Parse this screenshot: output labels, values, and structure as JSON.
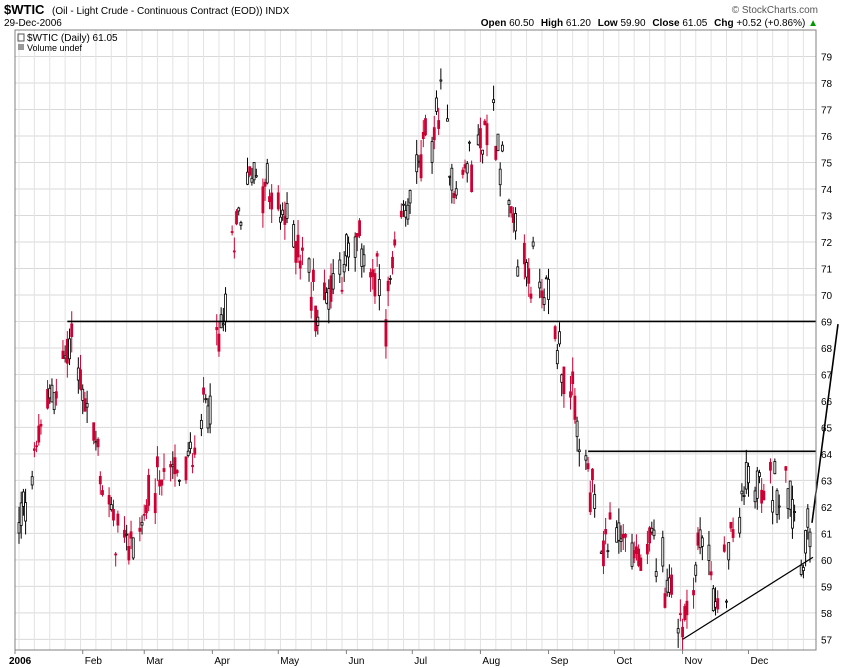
{
  "header": {
    "symbol": "$WTIC",
    "description": "(Oil - Light Crude - Continuous Contract (EOD)) INDX",
    "date": "29-Dec-2006",
    "open_label": "Open",
    "open": "60.50",
    "high_label": "High",
    "high": "61.20",
    "low_label": "Low",
    "low": "59.90",
    "close_label": "Close",
    "close": "61.05",
    "chg_label": "Chg",
    "chg": "+0.52 (+0.86%)",
    "chg_arrow": "▲",
    "watermark": "© StockCharts.com",
    "legend_series": "$WTIC (Daily) 61.05",
    "legend_volume": "Volume undef"
  },
  "colors": {
    "up": "#000000",
    "down": "#cc0033",
    "grid": "#d9d9d9",
    "chg_up": "#009900"
  },
  "chart_data": {
    "type": "candlestick",
    "title": "$WTIC (Oil - Light Crude - Continuous Contract (EOD)) INDX",
    "x_tick_labels": [
      "2006",
      "Feb",
      "Mar",
      "Apr",
      "May",
      "Jun",
      "Jul",
      "Aug",
      "Sep",
      "Oct",
      "Nov",
      "Dec"
    ],
    "y_ticks": [
      57,
      58,
      59,
      60,
      61,
      62,
      63,
      64,
      65,
      66,
      67,
      68,
      69,
      70,
      71,
      72,
      73,
      74,
      75,
      76,
      77,
      78,
      79
    ],
    "ylim": [
      56.6,
      80.0
    ],
    "xlim": [
      "2006-01-03",
      "2006-12-29"
    ],
    "grid": true,
    "approx_close_path": [
      {
        "date": "2006-01-03",
        "close": 61.0
      },
      {
        "date": "2006-01-10",
        "close": 63.9
      },
      {
        "date": "2006-01-20",
        "close": 66.8
      },
      {
        "date": "2006-01-27",
        "close": 68.2
      },
      {
        "date": "2006-02-03",
        "close": 65.8
      },
      {
        "date": "2006-02-13",
        "close": 61.8
      },
      {
        "date": "2006-02-21",
        "close": 60.5
      },
      {
        "date": "2006-03-01",
        "close": 61.5
      },
      {
        "date": "2006-03-10",
        "close": 63.4
      },
      {
        "date": "2006-03-20",
        "close": 63.2
      },
      {
        "date": "2006-03-31",
        "close": 66.4
      },
      {
        "date": "2006-04-05",
        "close": 68.5
      },
      {
        "date": "2006-04-14",
        "close": 73.5
      },
      {
        "date": "2006-04-21",
        "close": 74.9
      },
      {
        "date": "2006-05-01",
        "close": 73.0
      },
      {
        "date": "2006-05-10",
        "close": 72.1
      },
      {
        "date": "2006-05-19",
        "close": 69.5
      },
      {
        "date": "2006-05-31",
        "close": 71.3
      },
      {
        "date": "2006-06-09",
        "close": 71.8
      },
      {
        "date": "2006-06-19",
        "close": 69.3
      },
      {
        "date": "2006-06-30",
        "close": 73.9
      },
      {
        "date": "2006-07-14",
        "close": 77.0
      },
      {
        "date": "2006-07-21",
        "close": 74.0
      },
      {
        "date": "2006-08-07",
        "close": 76.8
      },
      {
        "date": "2006-08-18",
        "close": 71.5
      },
      {
        "date": "2006-08-31",
        "close": 70.2
      },
      {
        "date": "2006-09-11",
        "close": 66.2
      },
      {
        "date": "2006-09-25",
        "close": 60.5
      },
      {
        "date": "2006-10-02",
        "close": 61.3
      },
      {
        "date": "2006-10-13",
        "close": 59.8
      },
      {
        "date": "2006-10-20",
        "close": 60.5
      },
      {
        "date": "2006-11-01",
        "close": 57.5
      },
      {
        "date": "2006-11-10",
        "close": 61.0
      },
      {
        "date": "2006-11-17",
        "close": 58.2
      },
      {
        "date": "2006-12-01",
        "close": 63.3
      },
      {
        "date": "2006-12-08",
        "close": 62.2
      },
      {
        "date": "2006-12-18",
        "close": 63.5
      },
      {
        "date": "2006-12-26",
        "close": 60.2
      },
      {
        "date": "2006-12-29",
        "close": 61.05
      }
    ],
    "annotations": [
      {
        "kind": "horizontal-line",
        "y": 69.0,
        "from": "2006-01-25",
        "to": "2006-12-29"
      },
      {
        "kind": "horizontal-line",
        "y": 64.1,
        "from": "2006-09-19",
        "to": "2006-12-29"
      },
      {
        "kind": "trendline",
        "from": {
          "date": "2006-11-01",
          "y": 57.0
        },
        "to": {
          "date": "2006-12-29",
          "y": 60.1
        }
      }
    ]
  }
}
